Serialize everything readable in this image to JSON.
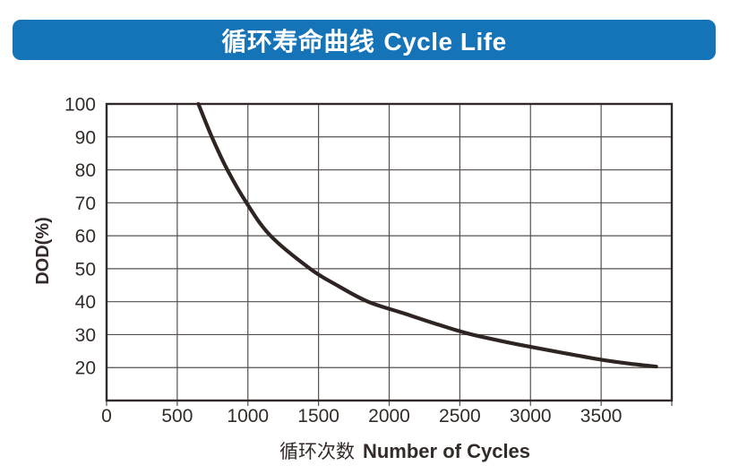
{
  "banner": {
    "title_zh": "循环寿命曲线",
    "title_en": "Cycle Life"
  },
  "colors": {
    "banner_blue": "#1573b7",
    "banner_text": "#ffffff",
    "ink": "#332b28",
    "grid_line": "#55504d",
    "plot_border": "#302b29",
    "curve": "#2e2422",
    "background": "#ffffff"
  },
  "chart_data": {
    "type": "line",
    "title": "循环寿命曲线 Cycle Life",
    "ylabel": "DOD(%)",
    "xlabel_zh": "循环次数",
    "xlabel_en": "Number of Cycles",
    "xlim": [
      0,
      4000
    ],
    "ylim": [
      10,
      100
    ],
    "x_ticks": [
      0,
      500,
      1000,
      1500,
      2000,
      2500,
      3000,
      3500
    ],
    "y_ticks": [
      100,
      90,
      80,
      70,
      60,
      50,
      40,
      30,
      20
    ],
    "grid": "on",
    "legend": "none",
    "series": [
      {
        "name": "cycle-life-curve",
        "points": [
          [
            650,
            100
          ],
          [
            745,
            90
          ],
          [
            855,
            80
          ],
          [
            990,
            70
          ],
          [
            1160,
            60
          ],
          [
            1440,
            50
          ],
          [
            1630,
            45
          ],
          [
            1850,
            40
          ],
          [
            2100,
            36.5
          ],
          [
            2350,
            33
          ],
          [
            2560,
            30.3
          ],
          [
            2800,
            28
          ],
          [
            3000,
            26.3
          ],
          [
            3250,
            24.3
          ],
          [
            3500,
            22.4
          ],
          [
            3700,
            21.2
          ],
          [
            3890,
            20.3
          ]
        ]
      }
    ]
  }
}
